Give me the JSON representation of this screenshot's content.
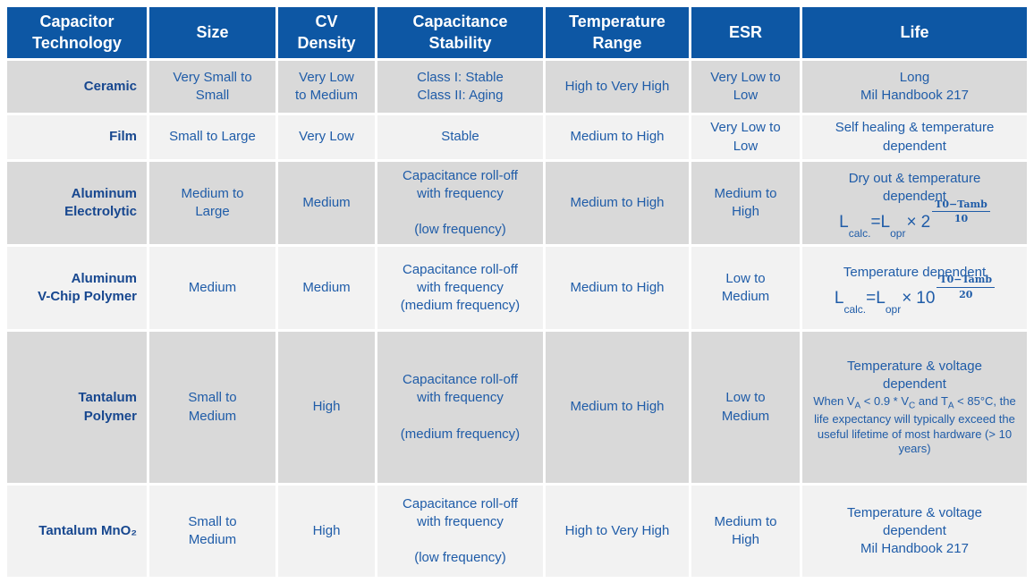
{
  "colors": {
    "header_bg": "#0D57A4",
    "row_dark": "#D9D9D9",
    "row_light": "#F2F2F2",
    "cell_text": "#1F5CA8",
    "label_text": "#17478F",
    "header_text": "#FFFFFF"
  },
  "header": {
    "columns": [
      "Capacitor\nTechnology",
      "Size",
      "CV\nDensity",
      "Capacitance\nStability",
      "Temperature\nRange",
      "ESR",
      "Life"
    ]
  },
  "rows": [
    {
      "technology": "Ceramic",
      "size": "Very Small to\nSmall",
      "cv_density": "Very Low\nto Medium",
      "stability": "Class I: Stable\nClass II: Aging",
      "temp_range": "High to Very High",
      "esr": "Very Low to\nLow",
      "life": "Long\nMil Handbook 217"
    },
    {
      "technology": "Film",
      "size": "Small to Large",
      "cv_density": "Very Low",
      "stability": "Stable",
      "temp_range": "Medium to High",
      "esr": "Very Low to\nLow",
      "life": "Self healing & temperature\ndependent"
    },
    {
      "technology": "Aluminum\nElectrolytic",
      "size": "Medium to\nLarge",
      "cv_density": "Medium",
      "stability": "Capacitance roll-off\nwith frequency\n\n(low frequency)",
      "temp_range": "Medium to High",
      "esr": "Medium to\nHigh",
      "life_title": "Dry out & temperature\ndependent",
      "formula": {
        "lhs_base": "L",
        "lhs_sub": "calc.",
        "equals": "=",
        "rhs_base": "L",
        "rhs_sub": "opr",
        "times": "×",
        "exp_base": "2",
        "frac_num": "T0−Tamb",
        "frac_den": "10"
      }
    },
    {
      "technology": "Aluminum\nV-Chip Polymer",
      "size": "Medium",
      "cv_density": "Medium",
      "stability": "Capacitance roll-off\nwith frequency\n(medium frequency)",
      "temp_range": "Medium to High",
      "esr": "Low to\nMedium",
      "life_title": "Temperature dependent",
      "formula": {
        "lhs_base": "L",
        "lhs_sub": "calc.",
        "equals": "=",
        "rhs_base": "L",
        "rhs_sub": "opr",
        "times": "×",
        "exp_base": "10",
        "frac_num": "T0−Tamb",
        "frac_den": "20"
      }
    },
    {
      "technology": "Tantalum\nPolymer",
      "size": "Small to\nMedium",
      "cv_density": "High",
      "stability": "Capacitance roll-off\nwith frequency\n\n(medium frequency)",
      "temp_range": "Medium to High",
      "esr": "Low to\nMedium",
      "life_title": "Temperature & voltage\ndependent",
      "note": {
        "p0": "When V",
        "s0": "A",
        "p1": " < 0.9 * V",
        "s1": "C",
        "p2": " and T",
        "s2": "A",
        "p3": " < 85°C, the life expectancy will typically exceed the useful lifetime of most hardware (> 10 years)"
      }
    },
    {
      "technology": "Tantalum MnO₂",
      "size": "Small to\nMedium",
      "cv_density": "High",
      "stability": "Capacitance roll-off\nwith frequency\n\n(low frequency)",
      "temp_range": "High to Very High",
      "esr": "Medium to\nHigh",
      "life": "Temperature & voltage\ndependent\nMil Handbook 217"
    }
  ]
}
